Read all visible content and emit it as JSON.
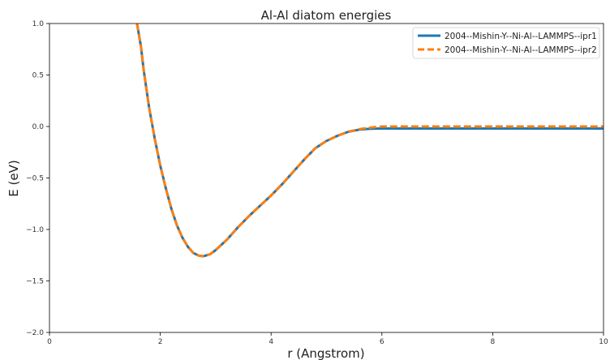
{
  "chart_data": {
    "type": "line",
    "title": "Al-Al diatom energies",
    "xlabel": "r (Angstrom)",
    "ylabel": "E (eV)",
    "xlim": [
      0,
      10
    ],
    "ylim": [
      -2.0,
      1.0
    ],
    "x_ticks": [
      "0",
      "2",
      "4",
      "6",
      "8",
      "10"
    ],
    "y_ticks": [
      "−2.0",
      "−1.5",
      "−1.0",
      "−0.5",
      "0.0",
      "0.5",
      "1.0"
    ],
    "grid": false,
    "legend_position": "top-right",
    "series": [
      {
        "name": "2004--Mishin-Y--Ni-Al--LAMMPS--ipr1",
        "color": "#1f77b4",
        "style": "solid",
        "x": [
          1.58,
          1.65,
          1.7,
          1.8,
          1.9,
          2.0,
          2.1,
          2.2,
          2.3,
          2.4,
          2.5,
          2.6,
          2.7,
          2.78,
          2.9,
          3.0,
          3.2,
          3.4,
          3.6,
          3.8,
          4.0,
          4.2,
          4.4,
          4.6,
          4.8,
          5.0,
          5.2,
          5.4,
          5.6,
          5.8,
          6.0,
          6.5,
          7.0,
          8.0,
          9.0,
          10.0
        ],
        "y": [
          1.0,
          0.78,
          0.55,
          0.18,
          -0.12,
          -0.38,
          -0.6,
          -0.8,
          -0.96,
          -1.08,
          -1.17,
          -1.23,
          -1.255,
          -1.26,
          -1.24,
          -1.2,
          -1.1,
          -0.98,
          -0.87,
          -0.77,
          -0.67,
          -0.56,
          -0.44,
          -0.32,
          -0.21,
          -0.14,
          -0.09,
          -0.05,
          -0.03,
          -0.022,
          -0.02,
          -0.02,
          -0.02,
          -0.02,
          -0.02,
          -0.02
        ]
      },
      {
        "name": "2004--Mishin-Y--Ni-Al--LAMMPS--ipr2",
        "color": "#ff7f0e",
        "style": "dashed",
        "x": [
          1.58,
          1.65,
          1.7,
          1.8,
          1.9,
          2.0,
          2.1,
          2.2,
          2.3,
          2.4,
          2.5,
          2.6,
          2.7,
          2.78,
          2.9,
          3.0,
          3.2,
          3.4,
          3.6,
          3.8,
          4.0,
          4.2,
          4.4,
          4.6,
          4.8,
          5.0,
          5.2,
          5.4,
          5.6,
          5.8,
          6.0,
          6.5,
          7.0,
          8.0,
          9.0,
          10.0
        ],
        "y": [
          1.0,
          0.78,
          0.55,
          0.18,
          -0.12,
          -0.38,
          -0.6,
          -0.8,
          -0.96,
          -1.08,
          -1.17,
          -1.23,
          -1.255,
          -1.26,
          -1.24,
          -1.2,
          -1.1,
          -0.98,
          -0.87,
          -0.77,
          -0.67,
          -0.56,
          -0.44,
          -0.32,
          -0.21,
          -0.14,
          -0.09,
          -0.05,
          -0.025,
          -0.01,
          0.0,
          0.0,
          0.0,
          0.0,
          0.0,
          0.0
        ]
      }
    ]
  }
}
